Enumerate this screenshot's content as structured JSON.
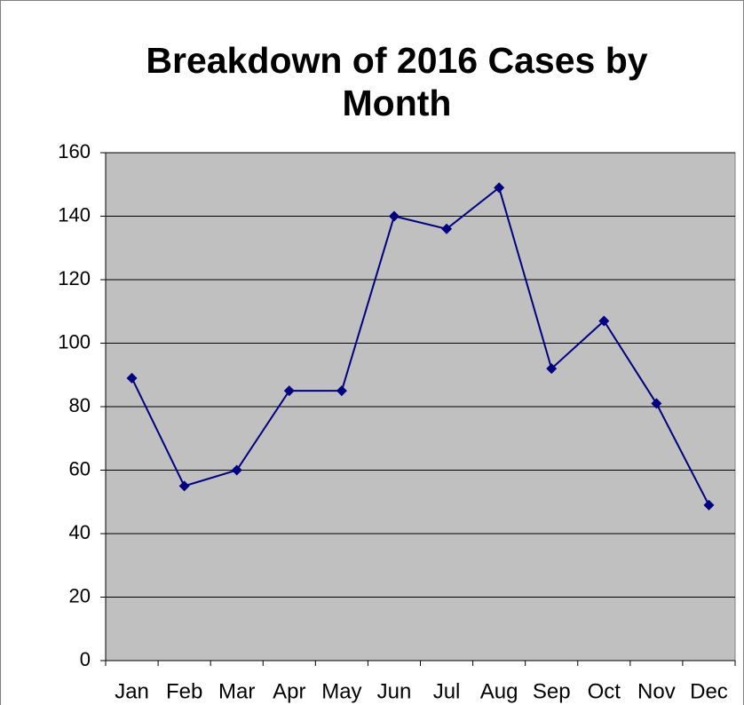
{
  "chart_data": {
    "type": "line",
    "title": "Breakdown of 2016 Cases by Month",
    "categories": [
      "Jan",
      "Feb",
      "Mar",
      "Apr",
      "May",
      "Jun",
      "Jul",
      "Aug",
      "Sep",
      "Oct",
      "Nov",
      "Dec"
    ],
    "values": [
      89,
      55,
      60,
      85,
      85,
      140,
      136,
      149,
      92,
      107,
      81,
      49
    ],
    "color": "#000080",
    "ylim": [
      0,
      160
    ],
    "yticks": [
      0,
      20,
      40,
      60,
      80,
      100,
      120,
      140,
      160
    ],
    "grid": true
  }
}
